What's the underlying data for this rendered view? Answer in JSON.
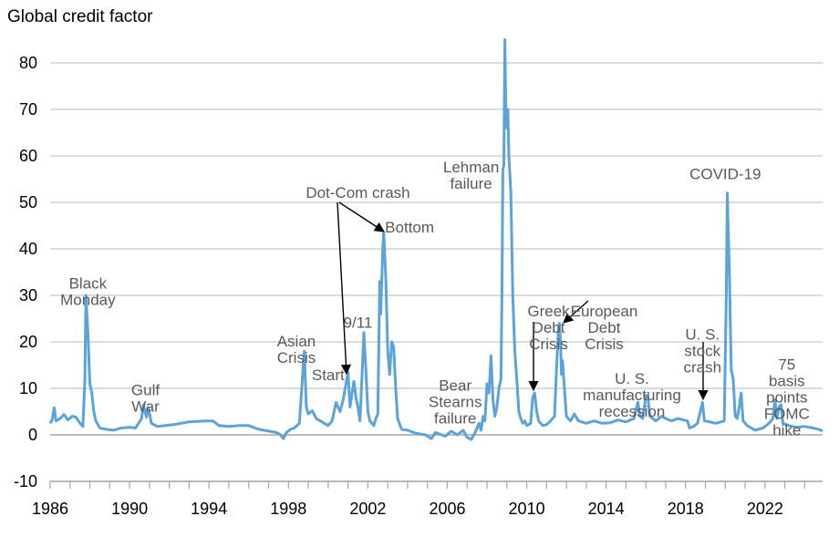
{
  "chart_data": {
    "type": "line",
    "title": "",
    "ylabel": "Global credit factor",
    "xlabel": "",
    "xlim": [
      1986,
      2024.9
    ],
    "ylim": [
      -10,
      85
    ],
    "grid": true,
    "x_ticks": [
      "1986",
      "1990",
      "1994",
      "1998",
      "2002",
      "2006",
      "2010",
      "2014",
      "2018",
      "2022"
    ],
    "y_ticks": [
      "-10",
      "0",
      "10",
      "20",
      "30",
      "40",
      "50",
      "60",
      "70",
      "80"
    ],
    "series": [
      {
        "color": "#5ba3da",
        "points": [
          [
            1986.0,
            2.5
          ],
          [
            1986.1,
            3.2
          ],
          [
            1986.2,
            5.8
          ],
          [
            1986.3,
            3.0
          ],
          [
            1986.5,
            3.5
          ],
          [
            1986.7,
            4.4
          ],
          [
            1986.9,
            3.2
          ],
          [
            1987.1,
            4.0
          ],
          [
            1987.3,
            3.8
          ],
          [
            1987.5,
            2.5
          ],
          [
            1987.65,
            1.8
          ],
          [
            1987.75,
            12.0
          ],
          [
            1987.8,
            30.0
          ],
          [
            1987.9,
            22.0
          ],
          [
            1988.0,
            11.0
          ],
          [
            1988.1,
            9.0
          ],
          [
            1988.2,
            5.0
          ],
          [
            1988.3,
            3.0
          ],
          [
            1988.5,
            1.5
          ],
          [
            1988.8,
            1.2
          ],
          [
            1989.2,
            1.0
          ],
          [
            1989.6,
            1.5
          ],
          [
            1990.0,
            1.6
          ],
          [
            1990.3,
            1.5
          ],
          [
            1990.6,
            3.5
          ],
          [
            1990.7,
            6.5
          ],
          [
            1990.85,
            3.8
          ],
          [
            1990.95,
            5.8
          ],
          [
            1991.1,
            2.5
          ],
          [
            1991.4,
            1.8
          ],
          [
            1991.8,
            2.0
          ],
          [
            1992.2,
            2.2
          ],
          [
            1992.6,
            2.5
          ],
          [
            1993.0,
            2.8
          ],
          [
            1993.4,
            2.9
          ],
          [
            1993.8,
            3.0
          ],
          [
            1994.2,
            3.0
          ],
          [
            1994.5,
            2.0
          ],
          [
            1995.0,
            1.8
          ],
          [
            1995.5,
            2.0
          ],
          [
            1996.0,
            2.0
          ],
          [
            1996.5,
            1.2
          ],
          [
            1997.0,
            0.8
          ],
          [
            1997.4,
            0.5
          ],
          [
            1997.6,
            0.0
          ],
          [
            1997.75,
            -0.8
          ],
          [
            1997.9,
            0.5
          ],
          [
            1998.1,
            1.2
          ],
          [
            1998.3,
            1.5
          ],
          [
            1998.55,
            2.5
          ],
          [
            1998.75,
            15.0
          ],
          [
            1998.8,
            18.0
          ],
          [
            1998.9,
            6.0
          ],
          [
            1999.0,
            4.5
          ],
          [
            1999.2,
            5.2
          ],
          [
            1999.4,
            3.5
          ],
          [
            1999.6,
            3.0
          ],
          [
            1999.8,
            2.5
          ],
          [
            2000.0,
            2.0
          ],
          [
            2000.2,
            3.0
          ],
          [
            2000.4,
            7.0
          ],
          [
            2000.6,
            5.0
          ],
          [
            2000.75,
            7.5
          ],
          [
            2000.9,
            11.0
          ],
          [
            2001.0,
            13.5
          ],
          [
            2001.1,
            6.0
          ],
          [
            2001.2,
            9.0
          ],
          [
            2001.3,
            11.5
          ],
          [
            2001.4,
            8.0
          ],
          [
            2001.5,
            6.0
          ],
          [
            2001.6,
            3.0
          ],
          [
            2001.7,
            12.0
          ],
          [
            2001.8,
            22.0
          ],
          [
            2001.9,
            14.0
          ],
          [
            2002.0,
            5.0
          ],
          [
            2002.1,
            3.0
          ],
          [
            2002.3,
            2.0
          ],
          [
            2002.4,
            3.5
          ],
          [
            2002.5,
            4.5
          ],
          [
            2002.6,
            33.0
          ],
          [
            2002.65,
            26.0
          ],
          [
            2002.75,
            40.0
          ],
          [
            2002.8,
            43.5
          ],
          [
            2002.9,
            34.0
          ],
          [
            2003.0,
            18.0
          ],
          [
            2003.1,
            13.0
          ],
          [
            2003.2,
            20.0
          ],
          [
            2003.3,
            19.0
          ],
          [
            2003.4,
            10.0
          ],
          [
            2003.5,
            3.5
          ],
          [
            2003.7,
            1.2
          ],
          [
            2004.0,
            1.0
          ],
          [
            2004.3,
            0.5
          ],
          [
            2004.6,
            0.2
          ],
          [
            2004.9,
            0.0
          ],
          [
            2005.2,
            -0.8
          ],
          [
            2005.4,
            0.5
          ],
          [
            2005.6,
            0.2
          ],
          [
            2005.9,
            -0.3
          ],
          [
            2006.2,
            0.8
          ],
          [
            2006.5,
            0.0
          ],
          [
            2006.8,
            1.0
          ],
          [
            2007.0,
            -0.5
          ],
          [
            2007.2,
            -1.0
          ],
          [
            2007.4,
            0.5
          ],
          [
            2007.6,
            2.5
          ],
          [
            2007.7,
            1.0
          ],
          [
            2007.8,
            4.0
          ],
          [
            2007.9,
            3.0
          ],
          [
            2008.0,
            11.0
          ],
          [
            2008.1,
            9.0
          ],
          [
            2008.2,
            17.0
          ],
          [
            2008.3,
            7.5
          ],
          [
            2008.4,
            4.0
          ],
          [
            2008.5,
            6.0
          ],
          [
            2008.6,
            10.0
          ],
          [
            2008.7,
            12.0
          ],
          [
            2008.75,
            30.0
          ],
          [
            2008.8,
            57.0
          ],
          [
            2008.85,
            58.0
          ],
          [
            2008.9,
            85.0
          ],
          [
            2008.95,
            69.0
          ],
          [
            2009.0,
            66.0
          ],
          [
            2009.05,
            70.0
          ],
          [
            2009.1,
            60.0
          ],
          [
            2009.2,
            52.0
          ],
          [
            2009.3,
            30.0
          ],
          [
            2009.4,
            18.0
          ],
          [
            2009.5,
            12.0
          ],
          [
            2009.6,
            5.0
          ],
          [
            2009.7,
            3.5
          ],
          [
            2009.8,
            2.5
          ],
          [
            2009.9,
            3.0
          ],
          [
            2010.0,
            2.0
          ],
          [
            2010.2,
            2.5
          ],
          [
            2010.3,
            8.0
          ],
          [
            2010.4,
            9.0
          ],
          [
            2010.5,
            5.0
          ],
          [
            2010.6,
            3.0
          ],
          [
            2010.8,
            2.0
          ],
          [
            2011.0,
            2.2
          ],
          [
            2011.2,
            3.0
          ],
          [
            2011.4,
            4.0
          ],
          [
            2011.5,
            14.0
          ],
          [
            2011.6,
            23.0
          ],
          [
            2011.65,
            24.0
          ],
          [
            2011.7,
            20.0
          ],
          [
            2011.75,
            13.0
          ],
          [
            2011.8,
            16.0
          ],
          [
            2011.9,
            10.0
          ],
          [
            2012.0,
            4.0
          ],
          [
            2012.2,
            3.0
          ],
          [
            2012.4,
            4.5
          ],
          [
            2012.6,
            3.0
          ],
          [
            2013.0,
            2.5
          ],
          [
            2013.4,
            3.0
          ],
          [
            2013.8,
            2.5
          ],
          [
            2014.2,
            2.6
          ],
          [
            2014.6,
            3.2
          ],
          [
            2015.0,
            2.8
          ],
          [
            2015.4,
            3.5
          ],
          [
            2015.6,
            7.0
          ],
          [
            2015.7,
            4.0
          ],
          [
            2015.85,
            3.5
          ],
          [
            2016.0,
            8.5
          ],
          [
            2016.1,
            8.0
          ],
          [
            2016.2,
            4.0
          ],
          [
            2016.5,
            3.0
          ],
          [
            2016.8,
            4.0
          ],
          [
            2017.0,
            3.5
          ],
          [
            2017.3,
            3.0
          ],
          [
            2017.6,
            3.5
          ],
          [
            2017.9,
            3.2
          ],
          [
            2018.1,
            3.0
          ],
          [
            2018.2,
            1.5
          ],
          [
            2018.4,
            1.8
          ],
          [
            2018.6,
            2.5
          ],
          [
            2018.85,
            7.0
          ],
          [
            2018.95,
            3.0
          ],
          [
            2019.2,
            2.8
          ],
          [
            2019.5,
            2.5
          ],
          [
            2019.8,
            2.8
          ],
          [
            2019.95,
            3.0
          ],
          [
            2020.05,
            30.0
          ],
          [
            2020.1,
            52.0
          ],
          [
            2020.2,
            36.0
          ],
          [
            2020.3,
            14.0
          ],
          [
            2020.4,
            12.0
          ],
          [
            2020.5,
            4.0
          ],
          [
            2020.6,
            3.5
          ],
          [
            2020.7,
            6.0
          ],
          [
            2020.8,
            9.0
          ],
          [
            2020.9,
            3.0
          ],
          [
            2021.1,
            2.0
          ],
          [
            2021.5,
            1.0
          ],
          [
            2021.9,
            1.5
          ],
          [
            2022.2,
            2.5
          ],
          [
            2022.4,
            3.5
          ],
          [
            2022.5,
            7.5
          ],
          [
            2022.6,
            3.5
          ],
          [
            2022.7,
            6.0
          ],
          [
            2022.8,
            6.5
          ],
          [
            2022.9,
            2.5
          ],
          [
            2023.2,
            2.0
          ],
          [
            2023.6,
            1.6
          ],
          [
            2024.0,
            1.8
          ],
          [
            2024.4,
            1.5
          ],
          [
            2024.7,
            1.2
          ],
          [
            2024.9,
            0.8
          ]
        ]
      }
    ],
    "annotations": [
      {
        "lines": [
          "Black",
          "Monday"
        ],
        "x": 1987.9,
        "y": 31.5
      },
      {
        "lines": [
          "Gulf",
          "War"
        ],
        "x": 1990.8,
        "y": 8.5
      },
      {
        "lines": [
          "Asian",
          "Crisis"
        ],
        "x": 1998.4,
        "y": 19.0
      },
      {
        "lines": [
          "Start"
        ],
        "x": 2000.0,
        "y": 11.8
      },
      {
        "lines": [
          "9/11"
        ],
        "x": 2001.5,
        "y": 23.0
      },
      {
        "lines": [
          "Dot-Com crash"
        ],
        "x": 2001.5,
        "y": 51.0
      },
      {
        "lines": [
          "Bottom"
        ],
        "x": 2004.1,
        "y": 43.5
      },
      {
        "lines": [
          "Bear",
          "Stearns",
          "failure"
        ],
        "x": 2006.4,
        "y": 9.5
      },
      {
        "lines": [
          "Lehman",
          "failure"
        ],
        "x": 2007.2,
        "y": 56.5
      },
      {
        "lines": [
          "Greek",
          "Debt",
          "Crisis"
        ],
        "x": 2011.1,
        "y": 25.5
      },
      {
        "lines": [
          "European",
          "Debt",
          "Crisis"
        ],
        "x": 2013.9,
        "y": 25.5
      },
      {
        "lines": [
          "U. S.",
          "manufacturing",
          "recession"
        ],
        "x": 2015.3,
        "y": 11.0
      },
      {
        "lines": [
          "U. S.",
          "stock",
          "crash"
        ],
        "x": 2018.85,
        "y": 20.5
      },
      {
        "lines": [
          "COVID-19"
        ],
        "x": 2020.0,
        "y": 55.0
      },
      {
        "lines": [
          "75",
          "basis",
          "points",
          "FOMC",
          "hike"
        ],
        "x": 2023.1,
        "y": 14.0
      }
    ]
  }
}
